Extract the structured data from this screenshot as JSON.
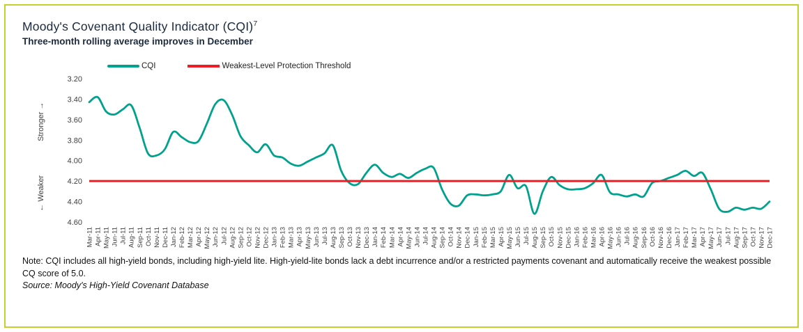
{
  "header": {
    "title": "Moody's Covenant Quality Indicator (CQI)",
    "footnote_marker": "7",
    "subtitle": "Three-month rolling average improves in December"
  },
  "legend": {
    "cqi_label": "CQI",
    "threshold_label": "Weakest-Level Protection Threshold"
  },
  "axis": {
    "stronger_label": "Stronger →",
    "weaker_label": "← Weaker"
  },
  "footer": {
    "note": "Note: CQI includes all high-yield bonds, including high-yield lite. High-yield-lite bonds lack a debt incurrence and/or a restricted payments covenant and automatically receive the weakest possible CQ score of 5.0.",
    "source": "Source: Moody's High-Yield Covenant Database"
  },
  "colors": {
    "cqi_line": "#00A18D",
    "threshold_line": "#ED1C24",
    "border": "#C3D22B"
  },
  "chart_data": {
    "type": "line",
    "title": "Moody's Covenant Quality Indicator (CQI)",
    "subtitle": "Three-month rolling average improves in December",
    "y_axis_inverted": true,
    "ylim": [
      3.2,
      4.6
    ],
    "yticks": [
      3.2,
      3.4,
      3.6,
      3.8,
      4.0,
      4.2,
      4.4,
      4.6
    ],
    "grid": false,
    "legend_position": "top",
    "categories": [
      "Mar-11",
      "Apr-11",
      "May-11",
      "Jun-11",
      "Jul-11",
      "Aug-11",
      "Sep-11",
      "Oct-11",
      "Nov-11",
      "Dec-11",
      "Jan-12",
      "Feb-12",
      "Mar-12",
      "Apr-12",
      "May-12",
      "Jun-12",
      "Jul-12",
      "Aug-12",
      "Sep-12",
      "Oct-12",
      "Nov-12",
      "Dec-12",
      "Jan-13",
      "Feb-13",
      "Mar-13",
      "Apr-13",
      "May-13",
      "Jun-13",
      "Jul-13",
      "Aug-13",
      "Sep-13",
      "Oct-13",
      "Nov-13",
      "Dec-13",
      "Jan-14",
      "Feb-14",
      "Mar-14",
      "Apr-14",
      "May-14",
      "Jun-14",
      "Jul-14",
      "Aug-14",
      "Sep-14",
      "Oct-14",
      "Nov-14",
      "Dec-14",
      "Jan-15",
      "Feb-15",
      "Mar-15",
      "Apr-15",
      "May-15",
      "Jun-15",
      "Jul-15",
      "Aug-15",
      "Sep-15",
      "Oct-15",
      "Nov-15",
      "Dec-15",
      "Jan-16",
      "Feb-16",
      "Mar-16",
      "Apr-16",
      "May-16",
      "Jun-16",
      "Jul-16",
      "Aug-16",
      "Sep-16",
      "Oct-16",
      "Nov-16",
      "Dec-16",
      "Jan-17",
      "Feb-17",
      "Mar-17",
      "Apr-17",
      "May-17",
      "Jun-17",
      "Jul-17",
      "Aug-17",
      "Sep-17",
      "Oct-17",
      "Nov-17",
      "Dec-17"
    ],
    "series": [
      {
        "name": "CQI",
        "values": [
          3.43,
          3.38,
          3.52,
          3.55,
          3.5,
          3.46,
          3.68,
          3.93,
          3.95,
          3.89,
          3.72,
          3.77,
          3.82,
          3.81,
          3.64,
          3.45,
          3.41,
          3.55,
          3.76,
          3.85,
          3.92,
          3.84,
          3.95,
          3.97,
          4.03,
          4.05,
          4.01,
          3.97,
          3.93,
          3.85,
          4.1,
          4.22,
          4.23,
          4.12,
          4.04,
          4.12,
          4.16,
          4.13,
          4.17,
          4.12,
          4.08,
          4.07,
          4.28,
          4.42,
          4.44,
          4.34,
          4.33,
          4.34,
          4.33,
          4.3,
          4.14,
          4.27,
          4.25,
          4.52,
          4.3,
          4.16,
          4.24,
          4.28,
          4.28,
          4.27,
          4.22,
          4.14,
          4.31,
          4.33,
          4.35,
          4.33,
          4.35,
          4.22,
          4.2,
          4.17,
          4.14,
          4.1,
          4.15,
          4.12,
          4.28,
          4.47,
          4.5,
          4.46,
          4.48,
          4.46,
          4.47,
          4.4
        ]
      },
      {
        "name": "Weakest-Level Protection Threshold",
        "type": "constant",
        "value": 4.2
      }
    ]
  }
}
